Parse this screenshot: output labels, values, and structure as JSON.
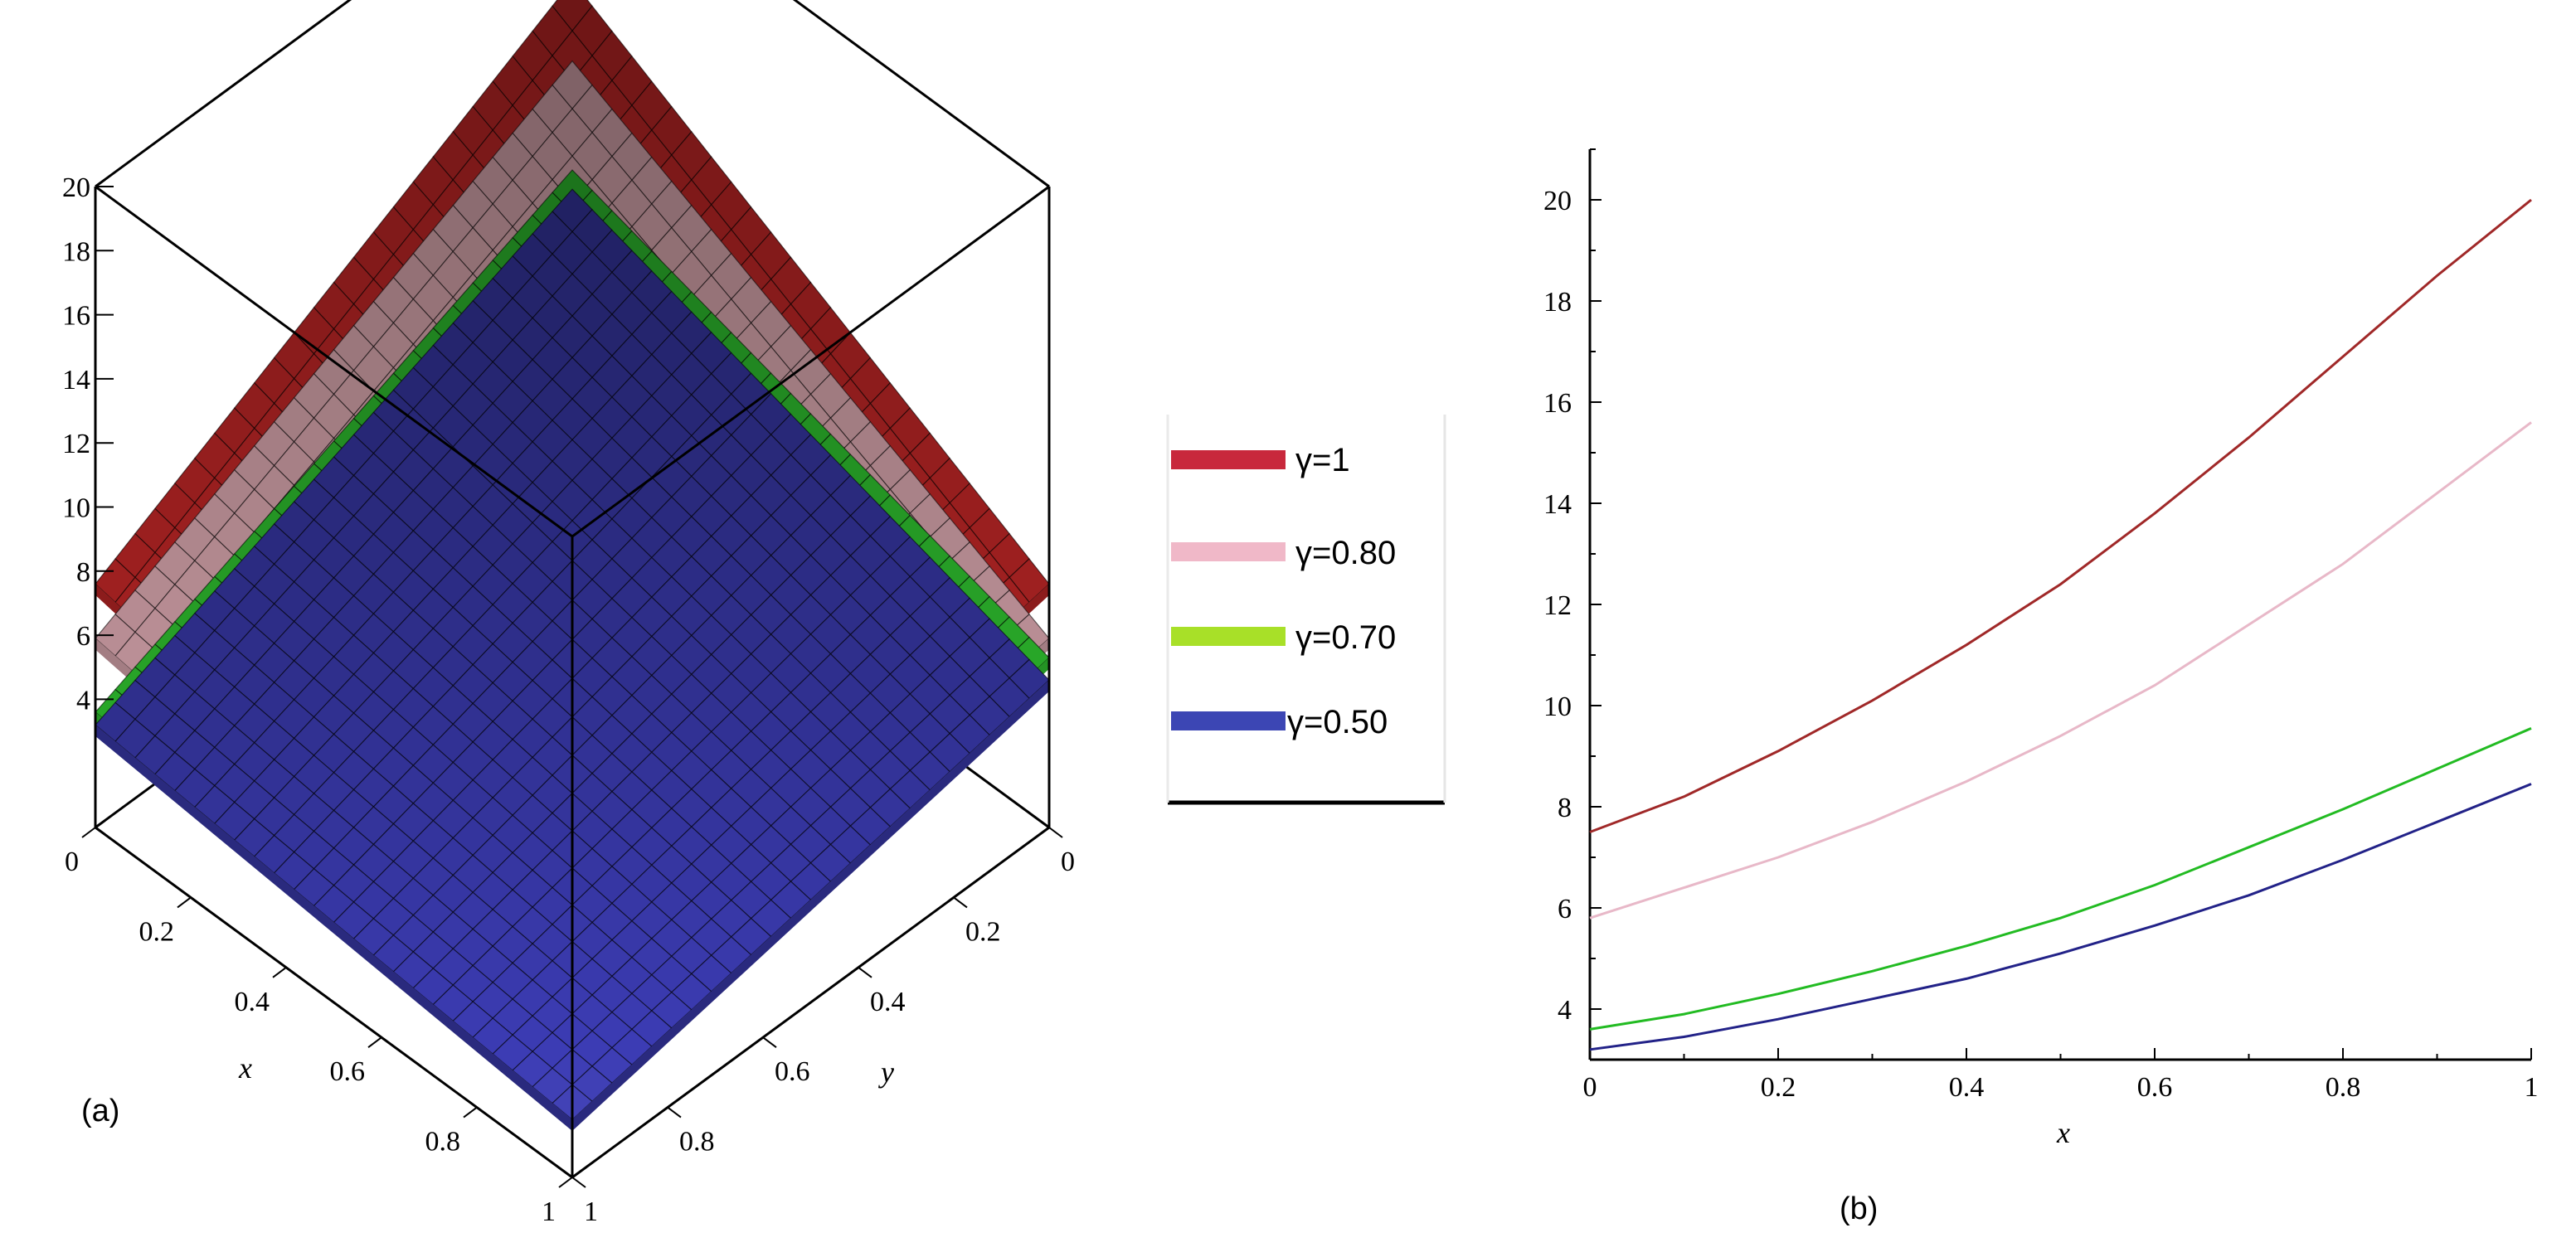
{
  "chart_data": [
    {
      "id": "a",
      "type": "surface3d",
      "panel_label": "(a)",
      "xlabel": "x",
      "ylabel": "y",
      "zlim": [
        0,
        20
      ],
      "z_ticks": [
        "4",
        "6",
        "8",
        "10",
        "12",
        "14",
        "16",
        "18",
        "20"
      ],
      "x_ticks": [
        "0",
        "0.2",
        "0.4",
        "0.6",
        "0.8",
        "1"
      ],
      "y_ticks": [
        "0",
        "0.2",
        "0.4",
        "0.6",
        "0.8",
        "1"
      ],
      "surfaces": [
        {
          "name": "γ=1",
          "color": "#c82828",
          "corner_values": {
            "x0y0": 15.5,
            "x0y1": 7.6,
            "x1y0": 7.6,
            "x1y1": 4.8
          }
        },
        {
          "name": "γ=0.80",
          "color": "#e9b3bb",
          "corner_values": {
            "x0y0": 13.0,
            "x0y1": 5.9,
            "x1y0": 5.9,
            "x1y1": 3.7
          }
        },
        {
          "name": "γ=0.70",
          "color": "#33d233",
          "corner_values": {
            "x0y0": 9.6,
            "x0y1": 3.6,
            "x1y0": 5.3,
            "x1y1": 2.2
          }
        },
        {
          "name": "γ=0.50",
          "color": "#3c3cb4",
          "corner_values": {
            "x0y0": 9.0,
            "x0y1": 3.2,
            "x1y0": 4.6,
            "x1y1": 1.8
          }
        }
      ]
    },
    {
      "id": "b",
      "type": "line",
      "panel_label": "(b)",
      "xlabel": "x",
      "ylabel": "",
      "xlim": [
        0,
        1
      ],
      "ylim": [
        3,
        21
      ],
      "x_ticks": [
        "0",
        "0.2",
        "0.4",
        "0.6",
        "0.8",
        "1"
      ],
      "y_ticks": [
        "4",
        "6",
        "8",
        "10",
        "12",
        "14",
        "16",
        "18",
        "20"
      ],
      "x": [
        0,
        0.1,
        0.2,
        0.3,
        0.4,
        0.5,
        0.6,
        0.7,
        0.8,
        0.9,
        1.0
      ],
      "series": [
        {
          "name": "γ=1",
          "color": "#a02828",
          "values": [
            7.5,
            8.2,
            9.1,
            10.1,
            11.2,
            12.4,
            13.8,
            15.3,
            16.9,
            18.5,
            20.0
          ]
        },
        {
          "name": "γ=0.80",
          "color": "#e8b8c8",
          "values": [
            5.8,
            6.4,
            7.0,
            7.7,
            8.5,
            9.4,
            10.4,
            11.6,
            12.8,
            14.2,
            15.6
          ]
        },
        {
          "name": "γ=0.70",
          "color": "#22bb22",
          "values": [
            3.6,
            3.9,
            4.3,
            4.75,
            5.25,
            5.8,
            6.45,
            7.2,
            7.95,
            8.75,
            9.55
          ]
        },
        {
          "name": "γ=0.50",
          "color": "#222288",
          "values": [
            3.2,
            3.45,
            3.8,
            4.2,
            4.6,
            5.1,
            5.65,
            6.25,
            6.95,
            7.7,
            8.45
          ]
        }
      ]
    }
  ],
  "legend": {
    "entries": [
      {
        "label": "γ=1",
        "color": "#c8283c"
      },
      {
        "label": "γ=0.80",
        "color": "#f0b8c8"
      },
      {
        "label": "γ=0.70",
        "color": "#a8e028"
      },
      {
        "label": "γ=0.50",
        "color": "#3c46b4"
      }
    ]
  }
}
